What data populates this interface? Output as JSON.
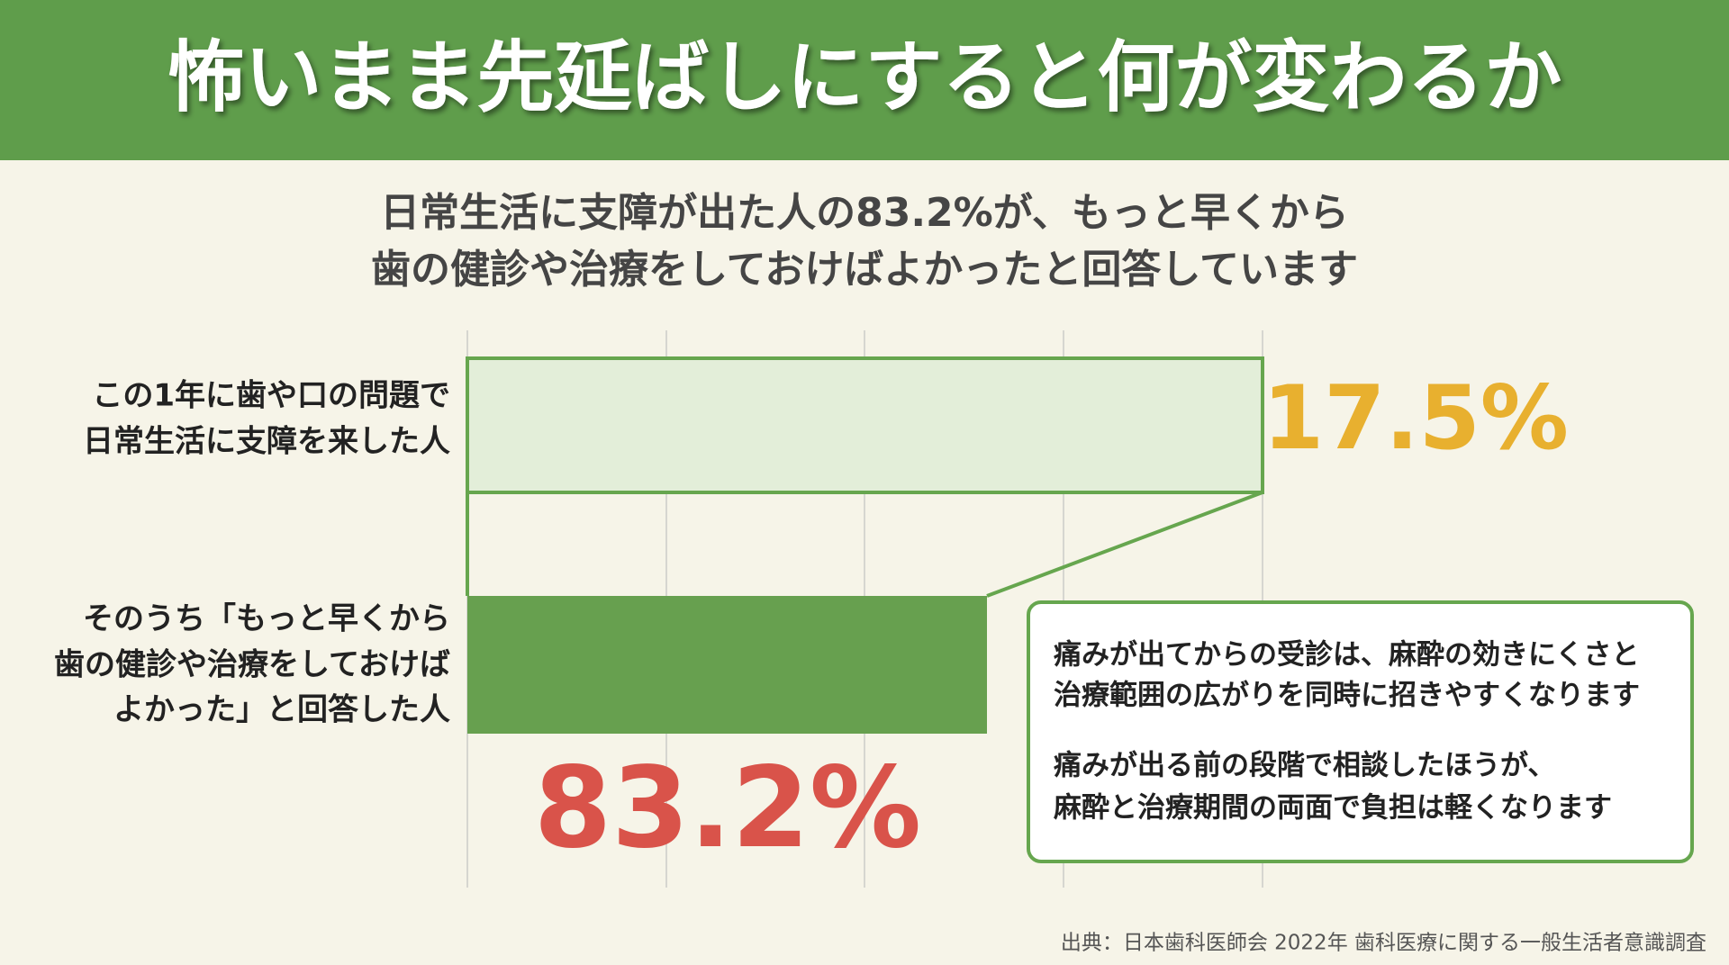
{
  "header": {
    "title": "怖いまま先延ばしにすると何が変わるか"
  },
  "subtitle": [
    "日常生活に支障が出た人の83.2%が、もっと早くから",
    "歯の健診や治療をしておけばよかったと回答しています"
  ],
  "rows": [
    {
      "label": [
        "この1年に歯や口の問題で",
        "日常生活に支障を来した人"
      ],
      "value": "17.5%"
    },
    {
      "label": [
        "そのうち「もっと早くから",
        "歯の健診や治療をしておけば",
        "よかった」と回答した人"
      ],
      "value": "83.2%"
    }
  ],
  "note": [
    [
      "痛みが出てからの受診は、麻酔の効きにくさと",
      "治療範囲の広がりを同時に招きやすくなります"
    ],
    [
      "痛みが出る前の段階で相談したほうが、",
      "麻酔と治療期間の両面で負担は軽くなります"
    ]
  ],
  "source": "出典：日本歯科医師会 2022年 歯科医療に関する一般生活者意識調査"
}
